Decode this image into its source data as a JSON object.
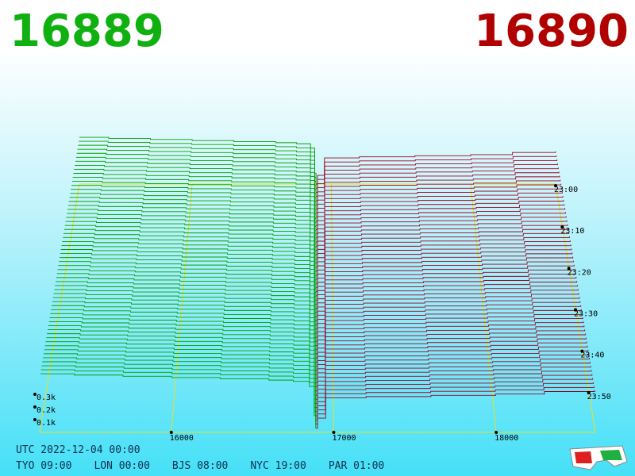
{
  "header": {
    "bid": "16889",
    "ask": "16890"
  },
  "chart_data": {
    "type": "depth3d",
    "bids": {
      "color": "#00a000",
      "prices": [
        15190,
        15400,
        15700,
        16000,
        16300,
        16600,
        16750,
        16850,
        16880,
        16889
      ],
      "values": [
        430,
        420,
        410,
        400,
        390,
        380,
        370,
        330,
        100,
        0
      ]
    },
    "asks": {
      "color": "#a00020",
      "prices": [
        16890,
        16900,
        16950,
        17200,
        17600,
        18000,
        18300,
        18610
      ],
      "values": [
        0,
        80,
        240,
        250,
        260,
        270,
        290,
        300
      ]
    },
    "xlim": [
      15190,
      18610
    ],
    "xticks": [
      16000,
      17000,
      18000
    ],
    "zticks": [
      {
        "value": 100,
        "label": "0.1k"
      },
      {
        "value": 200,
        "label": "0.2k"
      },
      {
        "value": 300,
        "label": "0.3k"
      }
    ],
    "time_ticks": [
      "23:00",
      "23:10",
      "23:20",
      "23:30",
      "23:40",
      "23:50"
    ]
  },
  "footer": {
    "utc": "UTC 2022-12-04 00:00",
    "zones": [
      "TYO 09:00",
      "LON 00:00",
      "BJS 08:00",
      "NYC 19:00",
      "PAR 01:00"
    ]
  }
}
